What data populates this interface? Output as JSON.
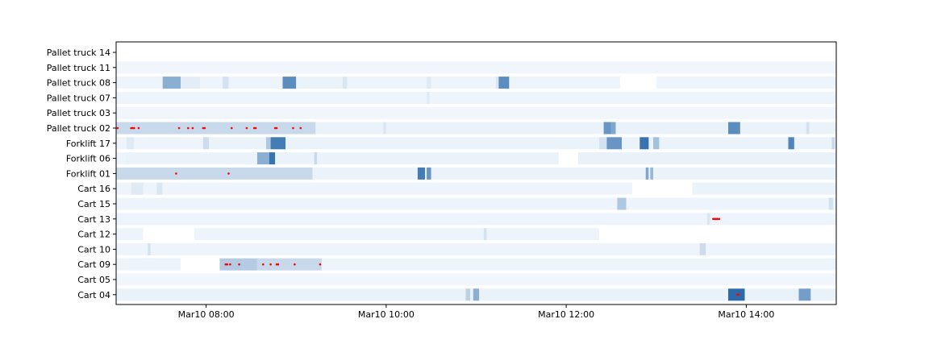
{
  "chart_data": {
    "type": "heatmap",
    "title": "",
    "xlabel": "",
    "ylabel": "",
    "x_range": [
      "2025-03-10T07:00",
      "2025-03-10T15:00"
    ],
    "x_ticks": [
      {
        "t": "2025-03-10T08:00",
        "label": "Mar10 08:00"
      },
      {
        "t": "2025-03-10T10:00",
        "label": "Mar10 10:00"
      },
      {
        "t": "2025-03-10T12:00",
        "label": "Mar10 12:00"
      },
      {
        "t": "2025-03-10T14:00",
        "label": "Mar10 14:00"
      }
    ],
    "grid": false,
    "legend": "none",
    "colors": {
      "scale_low": "#f7fbff",
      "scale_high": "#08519c",
      "event_marker": "#ff0000"
    },
    "rows": [
      {
        "label": "Pallet truck 14",
        "segments": [],
        "events": []
      },
      {
        "label": "Pallet truck 11",
        "segments": [
          {
            "start": "07:00",
            "end": "15:00",
            "level": 0.03
          }
        ],
        "events": []
      },
      {
        "label": "Pallet truck 08",
        "segments": [
          {
            "start": "07:00",
            "end": "07:31",
            "level": 0.04
          },
          {
            "start": "07:31",
            "end": "07:43",
            "level": 0.45
          },
          {
            "start": "07:43",
            "end": "07:56",
            "level": 0.08
          },
          {
            "start": "07:56",
            "end": "08:11",
            "level": 0.04
          },
          {
            "start": "08:11",
            "end": "08:15",
            "level": 0.15
          },
          {
            "start": "08:15",
            "end": "08:51",
            "level": 0.04
          },
          {
            "start": "08:51",
            "end": "09:00",
            "level": 0.65
          },
          {
            "start": "09:00",
            "end": "09:31",
            "level": 0.05
          },
          {
            "start": "09:31",
            "end": "09:34",
            "level": 0.12
          },
          {
            "start": "09:34",
            "end": "10:27",
            "level": 0.04
          },
          {
            "start": "10:27",
            "end": "10:30",
            "level": 0.1
          },
          {
            "start": "10:30",
            "end": "11:13",
            "level": 0.04
          },
          {
            "start": "11:13",
            "end": "11:15",
            "level": 0.12
          },
          {
            "start": "11:15",
            "end": "11:22",
            "level": 0.65
          },
          {
            "start": "11:22",
            "end": "12:36",
            "level": 0.04
          },
          {
            "start": "13:00",
            "end": "15:00",
            "level": 0.04
          }
        ],
        "events": []
      },
      {
        "label": "Pallet truck 07",
        "segments": [
          {
            "start": "07:00",
            "end": "10:27",
            "level": 0.04
          },
          {
            "start": "10:27",
            "end": "10:29",
            "level": 0.1
          },
          {
            "start": "10:29",
            "end": "15:00",
            "level": 0.04
          }
        ],
        "events": []
      },
      {
        "label": "Pallet truck 03",
        "segments": [
          {
            "start": "07:00",
            "end": "15:00",
            "level": 0.03
          }
        ],
        "events": []
      },
      {
        "label": "Pallet truck 02",
        "segments": [
          {
            "start": "07:00",
            "end": "09:13",
            "level": 0.2
          },
          {
            "start": "09:13",
            "end": "09:58",
            "level": 0.05
          },
          {
            "start": "09:58",
            "end": "10:00",
            "level": 0.12
          },
          {
            "start": "10:00",
            "end": "12:25",
            "level": 0.05
          },
          {
            "start": "12:25",
            "end": "12:30",
            "level": 0.6
          },
          {
            "start": "12:30",
            "end": "12:33",
            "level": 0.5
          },
          {
            "start": "12:33",
            "end": "13:48",
            "level": 0.06
          },
          {
            "start": "13:48",
            "end": "13:56",
            "level": 0.65
          },
          {
            "start": "13:56",
            "end": "14:40",
            "level": 0.05
          },
          {
            "start": "14:40",
            "end": "14:42",
            "level": 0.15
          },
          {
            "start": "14:42",
            "end": "15:00",
            "level": 0.05
          }
        ],
        "events": [
          "07:01",
          "07:10",
          "07:11",
          "07:12",
          "07:15",
          "07:42",
          "07:48",
          "07:51",
          "07:58",
          "07:59",
          "08:17",
          "08:27",
          "08:32",
          "08:33",
          "08:46",
          "08:47",
          "08:58",
          "09:03"
        ]
      },
      {
        "label": "Forklift 17",
        "segments": [
          {
            "start": "07:00",
            "end": "07:07",
            "level": 0.04
          },
          {
            "start": "07:07",
            "end": "07:12",
            "level": 0.1
          },
          {
            "start": "07:12",
            "end": "07:58",
            "level": 0.04
          },
          {
            "start": "07:58",
            "end": "08:02",
            "level": 0.18
          },
          {
            "start": "08:02",
            "end": "08:40",
            "level": 0.05
          },
          {
            "start": "08:40",
            "end": "08:43",
            "level": 0.3
          },
          {
            "start": "08:43",
            "end": "08:53",
            "level": 0.75
          },
          {
            "start": "08:53",
            "end": "12:22",
            "level": 0.05
          },
          {
            "start": "12:22",
            "end": "12:27",
            "level": 0.15
          },
          {
            "start": "12:27",
            "end": "12:37",
            "level": 0.6
          },
          {
            "start": "12:37",
            "end": "12:49",
            "level": 0.05
          },
          {
            "start": "12:49",
            "end": "12:55",
            "level": 0.8
          },
          {
            "start": "12:55",
            "end": "12:58",
            "level": 0.05
          },
          {
            "start": "12:58",
            "end": "13:02",
            "level": 0.35
          },
          {
            "start": "13:02",
            "end": "14:28",
            "level": 0.05
          },
          {
            "start": "14:28",
            "end": "14:32",
            "level": 0.7
          },
          {
            "start": "14:32",
            "end": "14:57",
            "level": 0.05
          },
          {
            "start": "14:57",
            "end": "14:59",
            "level": 0.2
          },
          {
            "start": "14:59",
            "end": "15:00",
            "level": 0.05
          }
        ],
        "events": []
      },
      {
        "label": "Forklift 06",
        "segments": [
          {
            "start": "07:00",
            "end": "07:06",
            "level": 0.04
          },
          {
            "start": "07:06",
            "end": "08:34",
            "level": 0.05
          },
          {
            "start": "08:34",
            "end": "08:42",
            "level": 0.45
          },
          {
            "start": "08:42",
            "end": "08:46",
            "level": 0.8
          },
          {
            "start": "08:46",
            "end": "09:12",
            "level": 0.05
          },
          {
            "start": "09:12",
            "end": "09:14",
            "level": 0.2
          },
          {
            "start": "09:14",
            "end": "11:55",
            "level": 0.05
          },
          {
            "start": "12:08",
            "end": "15:00",
            "level": 0.06
          }
        ],
        "events": []
      },
      {
        "label": "Forklift 01",
        "segments": [
          {
            "start": "07:00",
            "end": "09:11",
            "level": 0.2
          },
          {
            "start": "09:11",
            "end": "10:21",
            "level": 0.05
          },
          {
            "start": "10:21",
            "end": "10:26",
            "level": 0.75
          },
          {
            "start": "10:26",
            "end": "10:27",
            "level": 0.05
          },
          {
            "start": "10:27",
            "end": "10:30",
            "level": 0.6
          },
          {
            "start": "10:30",
            "end": "12:53",
            "level": 0.05
          },
          {
            "start": "12:53",
            "end": "12:55",
            "level": 0.5
          },
          {
            "start": "12:55",
            "end": "12:56",
            "level": 0.05
          },
          {
            "start": "12:56",
            "end": "12:58",
            "level": 0.4
          },
          {
            "start": "12:58",
            "end": "15:00",
            "level": 0.05
          }
        ],
        "events": [
          "07:40",
          "08:15"
        ]
      },
      {
        "label": "Cart 16",
        "segments": [
          {
            "start": "07:00",
            "end": "07:10",
            "level": 0.04
          },
          {
            "start": "07:10",
            "end": "07:18",
            "level": 0.1
          },
          {
            "start": "07:18",
            "end": "07:27",
            "level": 0.04
          },
          {
            "start": "07:27",
            "end": "07:31",
            "level": 0.12
          },
          {
            "start": "07:31",
            "end": "12:44",
            "level": 0.04
          },
          {
            "start": "13:24",
            "end": "15:00",
            "level": 0.05
          }
        ],
        "events": []
      },
      {
        "label": "Cart 15",
        "segments": [
          {
            "start": "07:00",
            "end": "12:34",
            "level": 0.04
          },
          {
            "start": "12:34",
            "end": "12:40",
            "level": 0.3
          },
          {
            "start": "12:40",
            "end": "14:55",
            "level": 0.04
          },
          {
            "start": "14:55",
            "end": "14:58",
            "level": 0.15
          },
          {
            "start": "14:58",
            "end": "15:00",
            "level": 0.04
          }
        ],
        "events": []
      },
      {
        "label": "Cart 13",
        "segments": [
          {
            "start": "07:00",
            "end": "13:34",
            "level": 0.04
          },
          {
            "start": "13:34",
            "end": "13:36",
            "level": 0.12
          },
          {
            "start": "13:36",
            "end": "15:00",
            "level": 0.04
          }
        ],
        "events": [
          "13:38",
          "13:39",
          "13:40",
          "13:41",
          "13:42"
        ]
      },
      {
        "label": "Cart 12",
        "segments": [
          {
            "start": "07:00",
            "end": "07:18",
            "level": 0.04
          },
          {
            "start": "07:52",
            "end": "11:05",
            "level": 0.04
          },
          {
            "start": "11:05",
            "end": "11:07",
            "level": 0.15
          },
          {
            "start": "11:07",
            "end": "12:22",
            "level": 0.04
          }
        ],
        "events": []
      },
      {
        "label": "Cart 10",
        "segments": [
          {
            "start": "07:00",
            "end": "07:21",
            "level": 0.04
          },
          {
            "start": "07:21",
            "end": "07:23",
            "level": 0.15
          },
          {
            "start": "07:23",
            "end": "13:29",
            "level": 0.04
          },
          {
            "start": "13:29",
            "end": "13:33",
            "level": 0.18
          },
          {
            "start": "13:33",
            "end": "15:00",
            "level": 0.04
          }
        ],
        "events": []
      },
      {
        "label": "Cart 09",
        "segments": [
          {
            "start": "07:00",
            "end": "07:43",
            "level": 0.04
          },
          {
            "start": "07:08",
            "end": "07:43",
            "level": 0.04
          },
          {
            "start": "07:43",
            "end": "08:09",
            "level": 0.0
          },
          {
            "start": "08:09",
            "end": "08:34",
            "level": 0.28
          },
          {
            "start": "08:34",
            "end": "09:17",
            "level": 0.2
          },
          {
            "start": "09:17",
            "end": "15:00",
            "level": 0.04
          }
        ],
        "events": [
          "08:13",
          "08:14",
          "08:16",
          "08:22",
          "08:38",
          "08:43",
          "08:47",
          "08:48",
          "08:59",
          "09:16"
        ]
      },
      {
        "label": "Cart 05",
        "segments": [
          {
            "start": "07:00",
            "end": "15:00",
            "level": 0.03
          }
        ],
        "events": []
      },
      {
        "label": "Cart 04",
        "segments": [
          {
            "start": "07:00",
            "end": "10:53",
            "level": 0.06
          },
          {
            "start": "10:53",
            "end": "10:56",
            "level": 0.25
          },
          {
            "start": "10:56",
            "end": "10:58",
            "level": 0.06
          },
          {
            "start": "10:58",
            "end": "11:02",
            "level": 0.45
          },
          {
            "start": "11:02",
            "end": "13:48",
            "level": 0.06
          },
          {
            "start": "13:48",
            "end": "13:59",
            "level": 0.85
          },
          {
            "start": "13:59",
            "end": "14:35",
            "level": 0.06
          },
          {
            "start": "14:35",
            "end": "14:43",
            "level": 0.55
          },
          {
            "start": "14:43",
            "end": "15:00",
            "level": 0.06
          }
        ],
        "events": [
          "13:54",
          "13:55"
        ]
      }
    ]
  }
}
